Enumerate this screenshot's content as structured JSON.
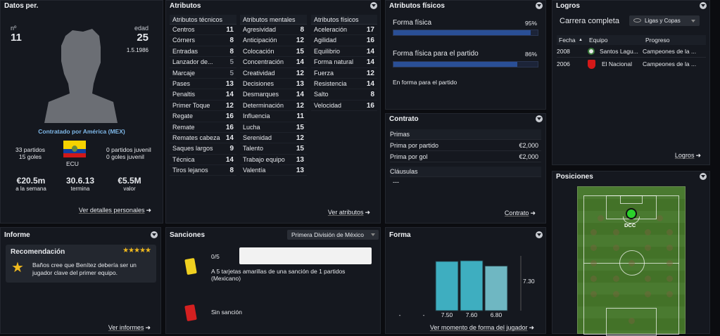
{
  "datos": {
    "title": "Datos per.",
    "num_label": "nº",
    "num": "11",
    "age_label": "edad",
    "age": "25",
    "dob": "1.5.1986",
    "contract": "Contratado por América (MEX)",
    "partidos": "33 partidos",
    "goles": "15 goles",
    "country": "ECU",
    "jpartidos": "0 partidos juvenil",
    "jgoles": "0 goles juvenil",
    "wage": "€20.5m",
    "wage_label": "a la semana",
    "ends": "30.6.13",
    "ends_label": "termina",
    "value": "€5.5M",
    "value_label": "valor",
    "link": "Ver detalles personales"
  },
  "atributos": {
    "title": "Atributos",
    "link": "Ver atributos",
    "tecnicos": {
      "header": "Atributos técnicos",
      "items": [
        [
          "Centros",
          "11"
        ],
        [
          "Córners",
          "8"
        ],
        [
          "Entradas",
          "8"
        ],
        [
          "Lanzador de...",
          "5"
        ],
        [
          "Marcaje",
          "5"
        ],
        [
          "Pases",
          "13"
        ],
        [
          "Penaltis",
          "14"
        ],
        [
          "Primer Toque",
          "12"
        ],
        [
          "Regate",
          "16"
        ],
        [
          "Remate",
          "16"
        ],
        [
          "Remates cabeza",
          "14"
        ],
        [
          "Saques largos",
          "9"
        ],
        [
          "Técnica",
          "14"
        ],
        [
          "Tiros lejanos",
          "8"
        ]
      ]
    },
    "mentales": {
      "header": "Atributos mentales",
      "items": [
        [
          "Agresividad",
          "8"
        ],
        [
          "Anticipación",
          "12"
        ],
        [
          "Colocación",
          "15"
        ],
        [
          "Concentración",
          "14"
        ],
        [
          "Creatividad",
          "12"
        ],
        [
          "Decisiones",
          "13"
        ],
        [
          "Desmarques",
          "14"
        ],
        [
          "Determinación",
          "12"
        ],
        [
          "Influencia",
          "11"
        ],
        [
          "Lucha",
          "15"
        ],
        [
          "Serenidad",
          "12"
        ],
        [
          "Talento",
          "15"
        ],
        [
          "Trabajo equipo",
          "13"
        ],
        [
          "Valentía",
          "13"
        ]
      ]
    },
    "fisicos": {
      "header": "Atributos físicos",
      "items": [
        [
          "Aceleración",
          "17"
        ],
        [
          "Agilidad",
          "16"
        ],
        [
          "Equilibrio",
          "14"
        ],
        [
          "Forma natural",
          "14"
        ],
        [
          "Fuerza",
          "12"
        ],
        [
          "Resistencia",
          "14"
        ],
        [
          "Salto",
          "8"
        ],
        [
          "Velocidad",
          "16"
        ]
      ]
    }
  },
  "fisicos_panel": {
    "title": "Atributos físicos",
    "forma_label": "Forma física",
    "forma_pct": "95%",
    "forma_value": 0.95,
    "partido_label": "Forma física para el partido",
    "partido_pct": "86%",
    "partido_value": 0.86,
    "status": "En forma para el partido"
  },
  "contrato": {
    "title": "Contrato",
    "primas": "Primas",
    "ppartido": "Prima por partido",
    "ppartido_val": "€2,000",
    "pgol": "Prima por gol",
    "pgol_val": "€2,000",
    "clausulas": "Cláusulas",
    "clausulas_val": "---",
    "link": "Contrato"
  },
  "logros": {
    "title": "Logros",
    "carrera": "Carrera completa",
    "filter": "Ligas y Copas",
    "headers": [
      "Fecha",
      "Equipo",
      "Progreso"
    ],
    "rows": [
      [
        "2008",
        "Santos Lagu...",
        "Campeones de la ..."
      ],
      [
        "2006",
        "El Nacional",
        "Campeones de la ..."
      ]
    ],
    "link": "Logros"
  },
  "posiciones": {
    "title": "Posiciones",
    "pos": "DCC"
  },
  "informe": {
    "title": "Informe",
    "rec_title": "Recomendación",
    "rec_text": "Baños cree que Benítez debería ser un jugador clave del primer equipo.",
    "stars": "★★★★★",
    "link": "Ver informes"
  },
  "sanciones": {
    "title": "Sanciones",
    "league": "Primera División de México",
    "yellow_count": "0/5",
    "yellow_text": "A 5 tarjetas amarillas de una sanción de 1 partidos (Mexicano)",
    "red_text": "Sin sanción"
  },
  "forma": {
    "title": "Forma",
    "avg": "7.30",
    "link": "Ver momento de forma del jugador",
    "chart_data": {
      "type": "bar",
      "categories": [
        "-",
        "-",
        "7.50",
        "7.60",
        "6.80"
      ],
      "values": [
        null,
        null,
        7.5,
        7.6,
        6.8
      ],
      "average": 7.3
    }
  }
}
